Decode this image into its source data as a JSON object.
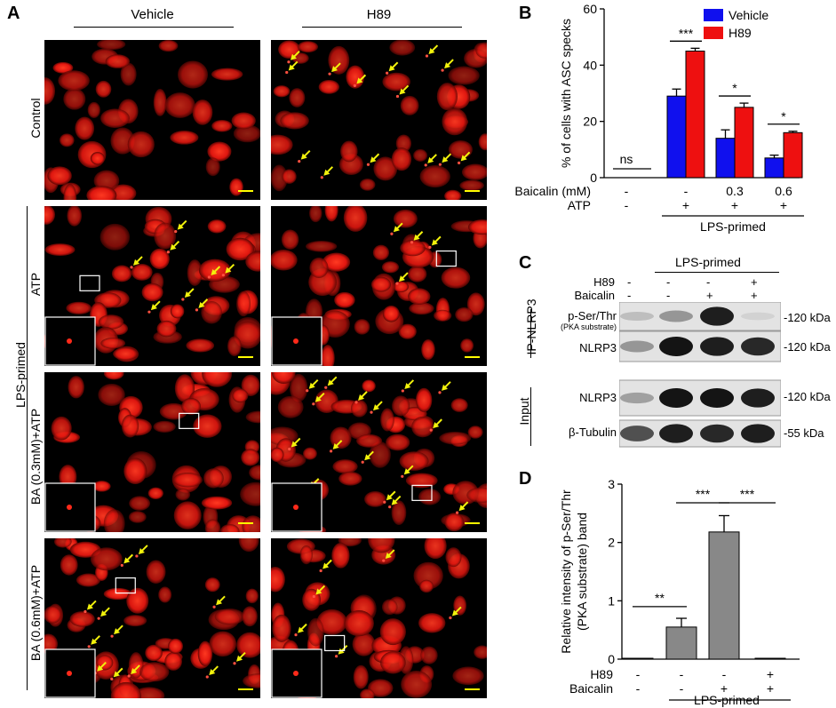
{
  "panel_A": {
    "letter": "A",
    "columns": [
      "Vehicle",
      "H89"
    ],
    "rows": [
      "Control",
      "ATP",
      "BA (0.3mM)+ATP",
      "BA (0.6mM)+ATP"
    ],
    "side_label": "LPS-primed",
    "colors": {
      "cell": "#e0160f",
      "arrow": "#f2f20c",
      "scale_bar": "#ffff00",
      "inset_border": "#ffffff"
    }
  },
  "panel_B": {
    "letter": "B"
  },
  "panel_C": {
    "letter": "C",
    "group_label": "LPS-primed",
    "rows_top": [
      {
        "name": "H89",
        "signs": [
          "-",
          "-",
          "-",
          "+"
        ]
      },
      {
        "name": "Baicalin",
        "signs": [
          "-",
          "-",
          "+",
          "+"
        ]
      }
    ],
    "ip_label": "IP-NLRP3",
    "input_label": "Input",
    "bands": [
      {
        "label": "p-Ser/Thr",
        "sublabel": "(PKA substrate)",
        "size": "-120 kDa"
      },
      {
        "label": "NLRP3",
        "sublabel": "",
        "size": "-120 kDa"
      },
      {
        "label": "NLRP3",
        "sublabel": "",
        "size": "-120 kDa"
      },
      {
        "label": "β-Tubulin",
        "sublabel": "",
        "size": "-55 kDa"
      }
    ]
  },
  "panel_D": {
    "letter": "D"
  },
  "chart_data": [
    {
      "type": "bar",
      "panel": "B",
      "ylabel": "% of cells with ASC specks",
      "ylim": [
        0,
        60
      ],
      "yticks": [
        0,
        20,
        40,
        60
      ],
      "legend": {
        "position": "top-right"
      },
      "series": [
        {
          "name": "Vehicle",
          "color": "#1010ee",
          "values": [
            0,
            29,
            14,
            7
          ],
          "errors": [
            0,
            2.5,
            3,
            1
          ]
        },
        {
          "name": "H89",
          "color": "#ee1010",
          "values": [
            0,
            45,
            25,
            16
          ],
          "errors": [
            0,
            1,
            1.5,
            0.5
          ]
        }
      ],
      "significance": [
        "ns",
        "***",
        "*",
        "*"
      ],
      "rows": [
        {
          "label": "Baicalin (mM)",
          "values": [
            "-",
            "-",
            "0.3",
            "0.6"
          ]
        },
        {
          "label": "ATP",
          "values": [
            "-",
            "+",
            "+",
            "+"
          ]
        }
      ],
      "group_label": "LPS-primed"
    },
    {
      "type": "bar",
      "panel": "D",
      "ylabel": "Relative intensity of p-Ser/Thr (PKA substrate) band",
      "ylim": [
        0,
        3
      ],
      "yticks": [
        0,
        1,
        2,
        3
      ],
      "series": [
        {
          "color": "#888888",
          "values": [
            0,
            0.55,
            2.18,
            0
          ],
          "errors": [
            0,
            0.15,
            0.28,
            0
          ]
        }
      ],
      "significance": [
        {
          "from": 0,
          "to": 1,
          "label": "**"
        },
        {
          "from": 1,
          "to": 2,
          "label": "***"
        },
        {
          "from": 2,
          "to": 3,
          "label": "***"
        }
      ],
      "rows": [
        {
          "label": "H89",
          "values": [
            "-",
            "-",
            "-",
            "+"
          ]
        },
        {
          "label": "Baicalin",
          "values": [
            "-",
            "-",
            "+",
            "+"
          ]
        }
      ],
      "group_label": "LPS-primed"
    }
  ]
}
